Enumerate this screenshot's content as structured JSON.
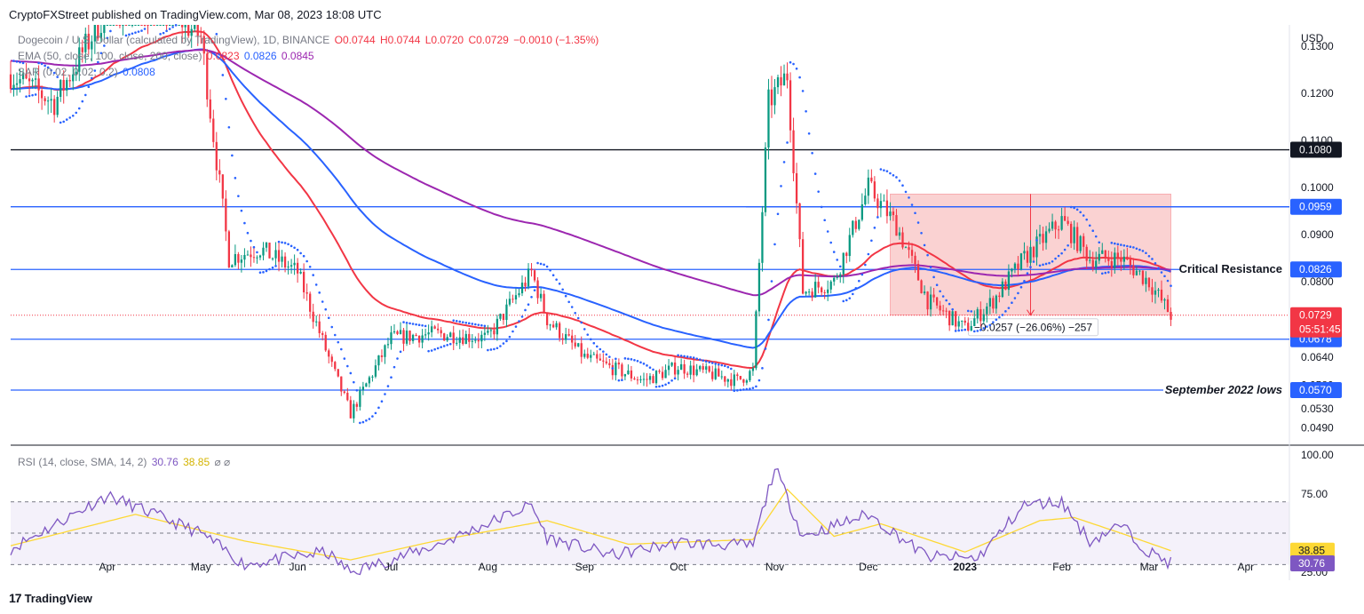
{
  "header": {
    "publisher_line": "CryptoFXStreet published on TradingView.com, Mar 08, 2023 18:08 UTC"
  },
  "legend": {
    "symbol": "Dogecoin / U.S. Dollar (calculated by TradingView), 1D, BINANCE",
    "ohlc": {
      "o": "O0.0744",
      "h": "H0.0744",
      "l": "L0.0720",
      "c": "C0.0729",
      "chg": "−0.0010 (−1.35%)"
    },
    "ema_label": "EMA (50, close, 100, close, 200, close)",
    "ema_values": [
      "0.0823",
      "0.0826",
      "0.0845"
    ],
    "sar_label": "SAR (0.02, 0.02, 0.2)",
    "sar_value": "0.0808",
    "rsi_label": "RSI (14, close, SMA, 14, 2)",
    "rsi_value": "30.76",
    "rsi_sma_value": "38.85",
    "rsi_extra": "⌀ ⌀"
  },
  "footer": {
    "brand": "TradingView",
    "logo": "17"
  },
  "colors": {
    "up": "#089981",
    "down": "#f23645",
    "ema50": "#f23645",
    "ema100": "#2962ff",
    "ema200": "#9c27b0",
    "sar": "#2962ff",
    "rsi": "#7e57c2",
    "rsi_sma": "#fdd835",
    "box": "#f8bbbb",
    "price_tag": "#f23645"
  },
  "chart_data": [
    {
      "type": "candlestick",
      "title": "",
      "ylabel": "USD",
      "ylim": [
        0.0455,
        0.1345
      ],
      "y_ticks": [
        "0.1300",
        "0.1200",
        "0.1100",
        "0.1000",
        "0.0900",
        "0.0800",
        "0.0640",
        "0.0580",
        "0.0530",
        "0.0490"
      ],
      "x_ticks": [
        "Apr",
        "May",
        "Jun",
        "Jul",
        "Aug",
        "Sep",
        "Oct",
        "Nov",
        "Dec",
        "2023",
        "Feb",
        "Mar",
        "Apr"
      ],
      "close_anchors": [
        {
          "x": "Mar 01",
          "y": 0.124
        },
        {
          "x": "Mar 15",
          "y": 0.118
        },
        {
          "x": "Apr 01",
          "y": 0.138
        },
        {
          "x": "Apr 20",
          "y": 0.138
        },
        {
          "x": "May 01",
          "y": 0.132
        },
        {
          "x": "May 10",
          "y": 0.085
        },
        {
          "x": "May 20",
          "y": 0.087
        },
        {
          "x": "Jun 01",
          "y": 0.082
        },
        {
          "x": "Jun 12",
          "y": 0.062
        },
        {
          "x": "Jun 18",
          "y": 0.052
        },
        {
          "x": "Jul 01",
          "y": 0.068
        },
        {
          "x": "Jul 15",
          "y": 0.069
        },
        {
          "x": "Aug 01",
          "y": 0.068
        },
        {
          "x": "Aug 15",
          "y": 0.082
        },
        {
          "x": "Aug 20",
          "y": 0.072
        },
        {
          "x": "Sep 01",
          "y": 0.064
        },
        {
          "x": "Sep 20",
          "y": 0.059
        },
        {
          "x": "Oct 01",
          "y": 0.062
        },
        {
          "x": "Oct 20",
          "y": 0.059
        },
        {
          "x": "Oct 25",
          "y": 0.061
        },
        {
          "x": "Oct 30",
          "y": 0.118
        },
        {
          "x": "Nov 05",
          "y": 0.124
        },
        {
          "x": "Nov 10",
          "y": 0.078
        },
        {
          "x": "Nov 20",
          "y": 0.08
        },
        {
          "x": "Dec 01",
          "y": 0.1
        },
        {
          "x": "Dec 10",
          "y": 0.092
        },
        {
          "x": "Dec 20",
          "y": 0.076
        },
        {
          "x": "Jan 01",
          "y": 0.07
        },
        {
          "x": "Jan 10",
          "y": 0.076
        },
        {
          "x": "Jan 20",
          "y": 0.085
        },
        {
          "x": "Feb 01",
          "y": 0.093
        },
        {
          "x": "Feb 10",
          "y": 0.085
        },
        {
          "x": "Feb 20",
          "y": 0.085
        },
        {
          "x": "Mar 01",
          "y": 0.08
        },
        {
          "x": "Mar 08",
          "y": 0.0729
        }
      ],
      "horizontal_levels": [
        {
          "value": 0.108,
          "label": "0.1080",
          "color": "#131722"
        },
        {
          "value": 0.0959,
          "label": "0.0959",
          "color": "#2962ff"
        },
        {
          "value": 0.0826,
          "label": "0.0826",
          "color": "#2962ff",
          "annotation": "Critical Resistance"
        },
        {
          "value": 0.0678,
          "label": "0.0678",
          "color": "#2962ff"
        },
        {
          "value": 0.057,
          "label": "0.0570",
          "color": "#2962ff",
          "annotation": "September 2022 lows"
        }
      ],
      "current_price": {
        "value": 0.0729,
        "label": "0.0729",
        "countdown": "05:51:45"
      },
      "measure_box": {
        "from": "Dec 08",
        "to": "Mar 08",
        "top": 0.0986,
        "bottom": 0.0729,
        "label": "−0.0257 (−26.06%) −257"
      }
    },
    {
      "type": "line",
      "title": "",
      "ylim": [
        20,
        105
      ],
      "y_ticks": [
        "100.00",
        "75.00",
        "25.00"
      ],
      "bands": {
        "upper": 70,
        "mid": 50,
        "lower": 30
      },
      "rsi_anchors": [
        {
          "x": "Mar 01",
          "y": 40
        },
        {
          "x": "Apr 01",
          "y": 74
        },
        {
          "x": "May 01",
          "y": 50
        },
        {
          "x": "May 15",
          "y": 30
        },
        {
          "x": "Jun 10",
          "y": 38
        },
        {
          "x": "Jun 18",
          "y": 25
        },
        {
          "x": "Jul 15",
          "y": 42
        },
        {
          "x": "Aug 15",
          "y": 68
        },
        {
          "x": "Aug 20",
          "y": 47
        },
        {
          "x": "Sep 10",
          "y": 36
        },
        {
          "x": "Oct 01",
          "y": 44
        },
        {
          "x": "Oct 25",
          "y": 42
        },
        {
          "x": "Nov 01",
          "y": 92
        },
        {
          "x": "Nov 10",
          "y": 48
        },
        {
          "x": "Dec 01",
          "y": 62
        },
        {
          "x": "Dec 20",
          "y": 35
        },
        {
          "x": "Jan 05",
          "y": 34
        },
        {
          "x": "Jan 20",
          "y": 68
        },
        {
          "x": "Feb 01",
          "y": 70
        },
        {
          "x": "Feb 10",
          "y": 45
        },
        {
          "x": "Feb 20",
          "y": 55
        },
        {
          "x": "Mar 01",
          "y": 38
        },
        {
          "x": "Mar 08",
          "y": 30.76
        }
      ],
      "sma_anchors": [
        {
          "x": "Mar 01",
          "y": 42
        },
        {
          "x": "Apr 10",
          "y": 62
        },
        {
          "x": "May 15",
          "y": 45
        },
        {
          "x": "Jun 18",
          "y": 33
        },
        {
          "x": "Jul 15",
          "y": 45
        },
        {
          "x": "Aug 20",
          "y": 58
        },
        {
          "x": "Sep 15",
          "y": 43
        },
        {
          "x": "Oct 25",
          "y": 46
        },
        {
          "x": "Nov 05",
          "y": 78
        },
        {
          "x": "Nov 20",
          "y": 48
        },
        {
          "x": "Dec 05",
          "y": 56
        },
        {
          "x": "Jan 01",
          "y": 38
        },
        {
          "x": "Jan 25",
          "y": 58
        },
        {
          "x": "Feb 05",
          "y": 60
        },
        {
          "x": "Feb 20",
          "y": 50
        },
        {
          "x": "Mar 08",
          "y": 38.85
        }
      ]
    }
  ]
}
